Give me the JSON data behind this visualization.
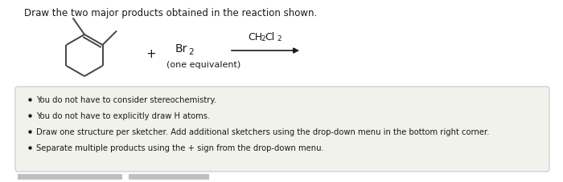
{
  "title": "Draw the two major products obtained in the reaction shown.",
  "title_fontsize": 8.5,
  "title_color": "#1a1a1a",
  "bg_color": "#ffffff",
  "box_bg_color": "#f2f2ed",
  "box_edge_color": "#c8c8c8",
  "bullet_points": [
    "You do not have to consider stereochemistry.",
    "You do not have to explicitly draw H atoms.",
    "Draw one structure per sketcher. Add additional sketchers using the drop-down menu in the bottom right corner.",
    "Separate multiple products using the + sign from the drop-down menu."
  ],
  "bullet_fontsize": 7.2,
  "one_equiv": "(one equivalent)",
  "plus_sign": "+",
  "molecule_color": "#444444",
  "text_color": "#1a1a1a",
  "arrow_color": "#1a1a1a",
  "fig_width": 7.0,
  "fig_height": 2.28,
  "dpi": 100
}
